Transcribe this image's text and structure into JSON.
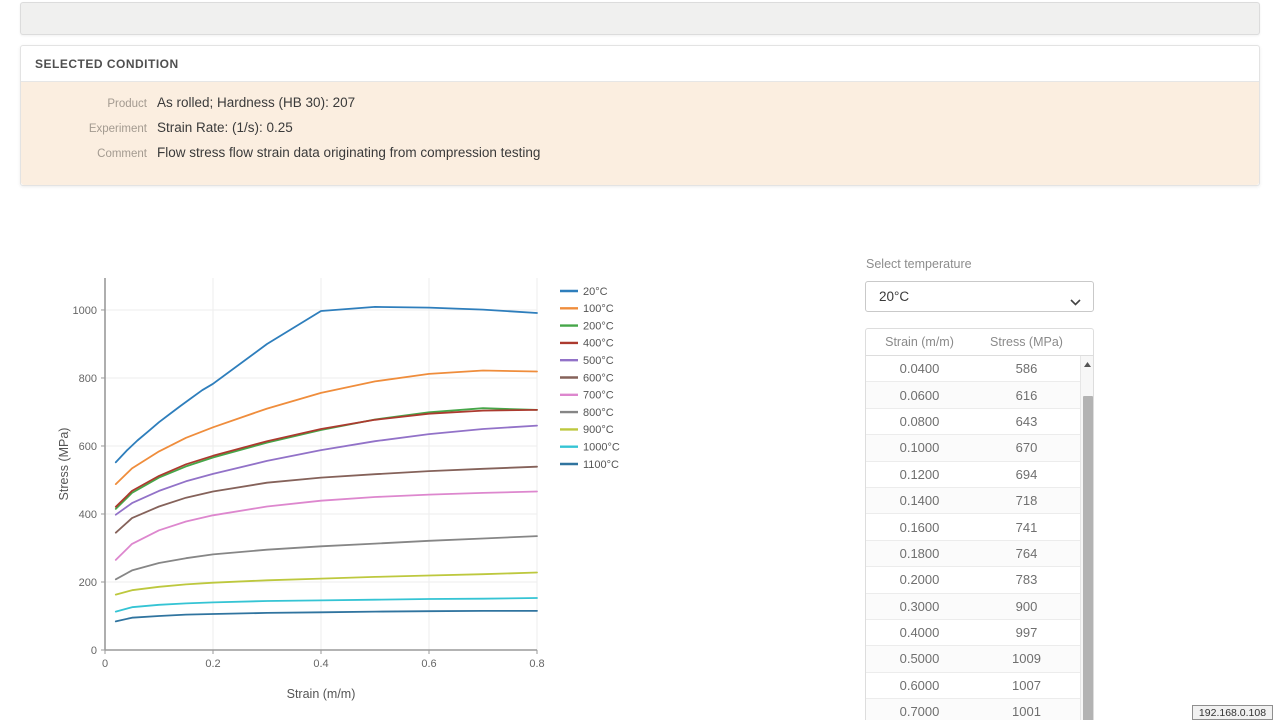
{
  "top_bar": {
    "label": ""
  },
  "condition_panel": {
    "title": "SELECTED CONDITION",
    "rows": [
      {
        "label": "Product",
        "value": "As rolled; Hardness (HB 30): 207"
      },
      {
        "label": "Experiment",
        "value": "Strain Rate: (1/s): 0.25"
      },
      {
        "label": "Comment",
        "value": "Flow stress flow strain data originating from compression testing"
      }
    ]
  },
  "chart_data": {
    "type": "line",
    "title": "",
    "xlabel": "Strain (m/m)",
    "ylabel": "Stress (MPa)",
    "xlim": [
      0,
      0.8
    ],
    "ylim": [
      0,
      1094
    ],
    "xticks": [
      0,
      0.2,
      0.4,
      0.6,
      0.8
    ],
    "yticks": [
      0,
      200,
      400,
      600,
      800,
      1000
    ],
    "grid": true,
    "legend_position": "right",
    "series": [
      {
        "name": "20°C",
        "color": "#2e7ebc",
        "x": [
          0.02,
          0.04,
          0.06,
          0.08,
          0.1,
          0.12,
          0.14,
          0.16,
          0.18,
          0.2,
          0.3,
          0.4,
          0.5,
          0.6,
          0.7,
          0.8
        ],
        "y": [
          552,
          586,
          616,
          643,
          670,
          694,
          718,
          741,
          764,
          783,
          900,
          997,
          1009,
          1007,
          1001,
          991
        ]
      },
      {
        "name": "100°C",
        "color": "#ef8d3c",
        "x": [
          0.02,
          0.05,
          0.1,
          0.15,
          0.2,
          0.3,
          0.4,
          0.5,
          0.6,
          0.7,
          0.8
        ],
        "y": [
          488,
          534,
          584,
          624,
          655,
          710,
          756,
          790,
          812,
          822,
          819
        ]
      },
      {
        "name": "200°C",
        "color": "#46a649",
        "x": [
          0.02,
          0.05,
          0.1,
          0.15,
          0.2,
          0.3,
          0.4,
          0.5,
          0.6,
          0.7,
          0.8
        ],
        "y": [
          415,
          462,
          507,
          540,
          566,
          610,
          647,
          678,
          699,
          711,
          706
        ]
      },
      {
        "name": "400°C",
        "color": "#ac3a2f",
        "x": [
          0.02,
          0.05,
          0.1,
          0.15,
          0.2,
          0.3,
          0.4,
          0.5,
          0.6,
          0.7,
          0.8
        ],
        "y": [
          421,
          468,
          512,
          546,
          571,
          614,
          650,
          677,
          695,
          704,
          706
        ]
      },
      {
        "name": "500°C",
        "color": "#9272c8",
        "x": [
          0.02,
          0.05,
          0.1,
          0.15,
          0.2,
          0.3,
          0.4,
          0.5,
          0.6,
          0.7,
          0.8
        ],
        "y": [
          398,
          432,
          468,
          496,
          518,
          556,
          588,
          614,
          635,
          650,
          660
        ]
      },
      {
        "name": "600°C",
        "color": "#85625a",
        "x": [
          0.02,
          0.05,
          0.1,
          0.15,
          0.2,
          0.3,
          0.4,
          0.5,
          0.6,
          0.7,
          0.8
        ],
        "y": [
          345,
          388,
          422,
          448,
          466,
          492,
          507,
          517,
          526,
          533,
          539
        ]
      },
      {
        "name": "700°C",
        "color": "#dd87ce",
        "x": [
          0.02,
          0.05,
          0.1,
          0.15,
          0.2,
          0.3,
          0.4,
          0.5,
          0.6,
          0.7,
          0.8
        ],
        "y": [
          265,
          312,
          352,
          378,
          396,
          422,
          439,
          450,
          457,
          462,
          466
        ]
      },
      {
        "name": "800°C",
        "color": "#868686",
        "x": [
          0.02,
          0.05,
          0.1,
          0.15,
          0.2,
          0.3,
          0.4,
          0.5,
          0.6,
          0.7,
          0.8
        ],
        "y": [
          208,
          234,
          256,
          270,
          281,
          295,
          305,
          313,
          321,
          328,
          335
        ]
      },
      {
        "name": "900°C",
        "color": "#bdc83e",
        "x": [
          0.02,
          0.05,
          0.1,
          0.15,
          0.2,
          0.3,
          0.4,
          0.5,
          0.6,
          0.7,
          0.8
        ],
        "y": [
          163,
          176,
          186,
          193,
          198,
          205,
          210,
          215,
          219,
          223,
          228
        ]
      },
      {
        "name": "1000°C",
        "color": "#35c4d4",
        "x": [
          0.02,
          0.05,
          0.1,
          0.15,
          0.2,
          0.3,
          0.4,
          0.5,
          0.6,
          0.7,
          0.8
        ],
        "y": [
          113,
          126,
          133,
          137,
          140,
          144,
          146,
          148,
          150,
          151,
          153
        ]
      },
      {
        "name": "1100°C",
        "color": "#30749f",
        "x": [
          0.02,
          0.05,
          0.1,
          0.15,
          0.2,
          0.3,
          0.4,
          0.5,
          0.6,
          0.7,
          0.8
        ],
        "y": [
          84,
          95,
          100,
          104,
          106,
          109,
          111,
          113,
          114,
          115,
          115
        ]
      }
    ]
  },
  "temperature_selector": {
    "label": "Select temperature",
    "selected": "20°C"
  },
  "table": {
    "columns": [
      "Strain (m/m)",
      "Stress (MPa)"
    ],
    "rows": [
      [
        "0.0400",
        "586"
      ],
      [
        "0.0600",
        "616"
      ],
      [
        "0.0800",
        "643"
      ],
      [
        "0.1000",
        "670"
      ],
      [
        "0.1200",
        "694"
      ],
      [
        "0.1400",
        "718"
      ],
      [
        "0.1600",
        "741"
      ],
      [
        "0.1800",
        "764"
      ],
      [
        "0.2000",
        "783"
      ],
      [
        "0.3000",
        "900"
      ],
      [
        "0.4000",
        "997"
      ],
      [
        "0.5000",
        "1009"
      ],
      [
        "0.6000",
        "1007"
      ],
      [
        "0.7000",
        "1001"
      ]
    ]
  },
  "status": {
    "ip": "192.168.0.108"
  }
}
